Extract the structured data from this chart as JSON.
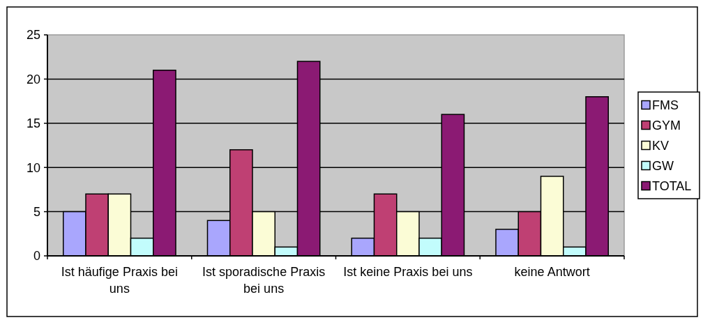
{
  "chart_data": {
    "type": "bar",
    "categories": [
      "Ist häufige Praxis bei uns",
      "Ist sporadische Praxis bei uns",
      "Ist keine Praxis bei uns",
      "keine Antwort"
    ],
    "series": [
      {
        "name": "FMS",
        "color": "#a9a6fd",
        "values": [
          5,
          4,
          2,
          3
        ]
      },
      {
        "name": "GYM",
        "color": "#bf4073",
        "values": [
          7,
          12,
          7,
          5
        ]
      },
      {
        "name": "KV",
        "color": "#fbfcd6",
        "values": [
          7,
          5,
          5,
          9
        ]
      },
      {
        "name": "GW",
        "color": "#c2fcfc",
        "values": [
          2,
          1,
          2,
          1
        ]
      },
      {
        "name": "TOTAL",
        "color": "#8b1a73",
        "values": [
          21,
          22,
          16,
          18
        ]
      }
    ],
    "ylim": [
      0,
      25
    ],
    "yticks": [
      0,
      5,
      10,
      15,
      20,
      25
    ],
    "grid": "y",
    "legend": "right"
  }
}
